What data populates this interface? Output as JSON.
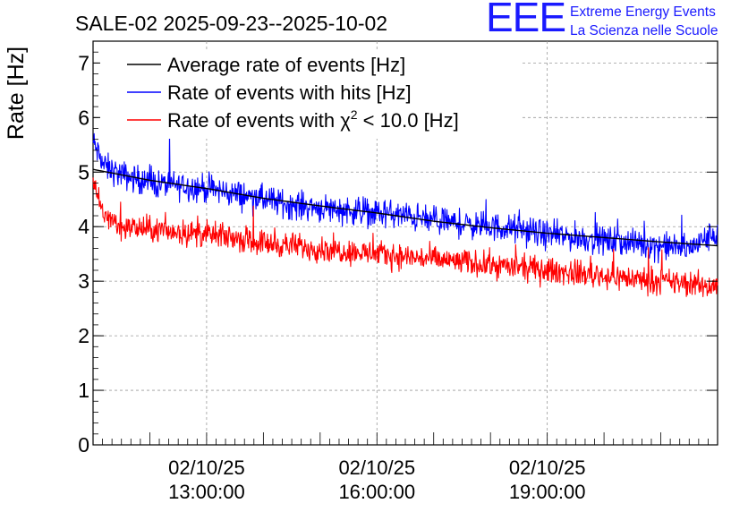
{
  "chart_data": {
    "type": "line",
    "title": "SALE-02 2025-09-23--2025-10-02",
    "ylabel": "Rate [Hz]",
    "xlabel": "",
    "ylim": [
      0,
      7.4
    ],
    "yticks": [
      0,
      1,
      2,
      3,
      4,
      5,
      6,
      7
    ],
    "xlim_hours": [
      11.0,
      22.0
    ],
    "x_tick_labels": [
      {
        "date": "02/10/25",
        "time": "13:00:00",
        "hour": 13
      },
      {
        "date": "02/10/25",
        "time": "16:00:00",
        "hour": 16
      },
      {
        "date": "02/10/25",
        "time": "19:00:00",
        "hour": 19
      }
    ],
    "grid": true,
    "legend_position": "top-left",
    "series": [
      {
        "name": "Average rate of events [Hz]",
        "color": "#000000",
        "hours": [
          11.0,
          11.5,
          12.0,
          13.0,
          14.0,
          15.0,
          16.0,
          17.0,
          18.0,
          19.0,
          20.0,
          21.0,
          22.0
        ],
        "values": [
          5.05,
          4.95,
          4.85,
          4.7,
          4.52,
          4.38,
          4.25,
          4.1,
          3.98,
          3.88,
          3.8,
          3.72,
          3.65
        ]
      },
      {
        "name": "Rate of events with hits [Hz]",
        "color": "#0000ff",
        "hours": [
          11.0,
          11.2,
          11.5,
          12.0,
          12.5,
          13.0,
          13.5,
          14.0,
          14.5,
          15.0,
          15.5,
          16.0,
          16.5,
          17.0,
          17.5,
          18.0,
          18.5,
          19.0,
          19.5,
          20.0,
          20.5,
          21.0,
          21.5,
          22.0
        ],
        "values": [
          5.55,
          5.1,
          4.95,
          4.8,
          4.75,
          4.7,
          4.6,
          4.5,
          4.4,
          4.35,
          4.3,
          4.25,
          4.2,
          4.1,
          4.05,
          4.0,
          3.95,
          3.85,
          3.8,
          3.75,
          3.7,
          3.65,
          3.6,
          3.9
        ],
        "noise_amplitude": 0.22
      },
      {
        "name": "Rate of events with χ² < 10.0 [Hz]",
        "color": "#ff0000",
        "hours": [
          11.0,
          11.2,
          11.5,
          12.0,
          12.5,
          13.0,
          13.5,
          14.0,
          14.5,
          15.0,
          15.5,
          16.0,
          16.5,
          17.0,
          17.5,
          18.0,
          18.5,
          19.0,
          19.5,
          20.0,
          20.5,
          21.0,
          21.5,
          22.0
        ],
        "values": [
          4.75,
          4.2,
          4.0,
          3.95,
          3.9,
          3.85,
          3.8,
          3.7,
          3.65,
          3.6,
          3.55,
          3.5,
          3.45,
          3.4,
          3.35,
          3.3,
          3.25,
          3.2,
          3.15,
          3.1,
          3.05,
          3.0,
          2.95,
          2.9
        ],
        "noise_amplitude": 0.2
      }
    ]
  },
  "legend": {
    "avg_label": "Average rate of events [Hz]",
    "hits_label": "Rate of events with hits [Hz]",
    "chi_prefix": "Rate of events with χ",
    "chi_sup": "2",
    "chi_suffix": " < 10.0 [Hz]"
  },
  "logo": {
    "letters": "EEE",
    "line1": "Extreme Energy Events",
    "line2": "La Scienza nelle Scuole",
    "color": "#1a1aff"
  }
}
